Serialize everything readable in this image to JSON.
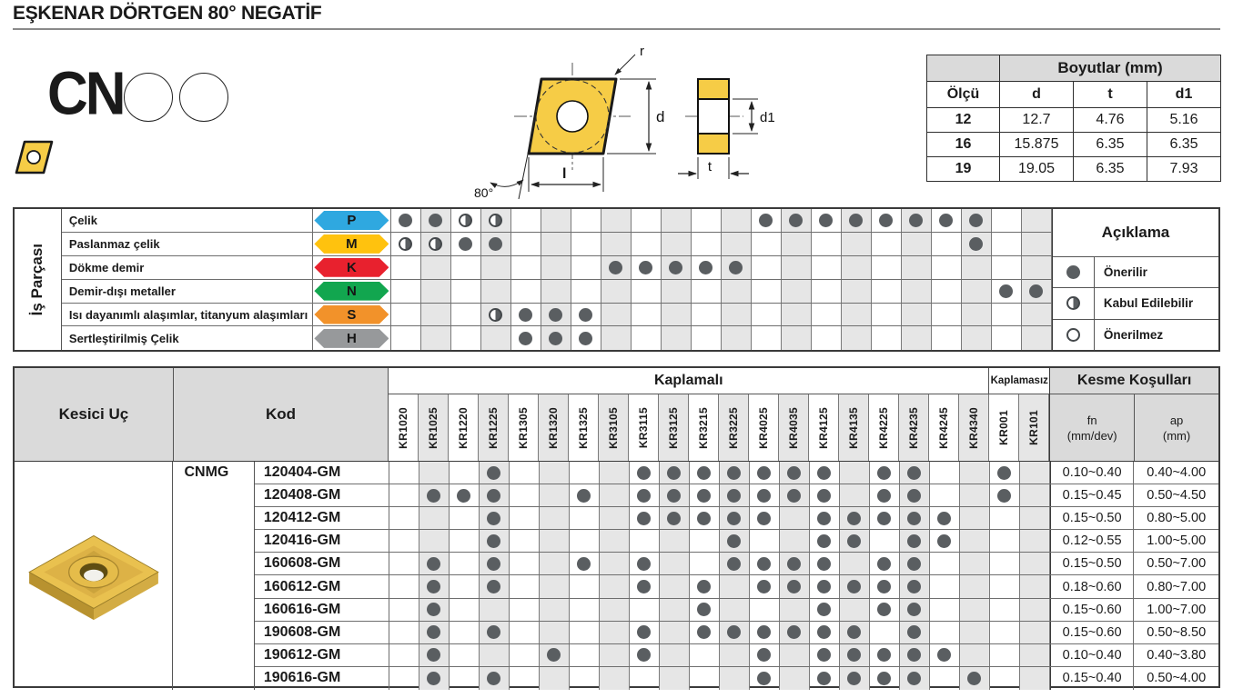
{
  "page": {
    "title": "EŞKENAR DÖRTGEN 80° NEGATİF"
  },
  "header": {
    "designation": "CN",
    "diagram_labels": {
      "r": "r",
      "d": "d",
      "l": "l",
      "angle": "80°",
      "d1": "d1",
      "t": "t"
    },
    "dimensions_table": {
      "title": "Boyutlar (mm)",
      "col_headers": [
        "Ölçü",
        "d",
        "t",
        "d1"
      ],
      "rows": [
        [
          "12",
          "12.7",
          "4.76",
          "5.16"
        ],
        [
          "16",
          "15.875",
          "6.35",
          "6.35"
        ],
        [
          "19",
          "19.05",
          "6.35",
          "7.93"
        ]
      ]
    }
  },
  "materials_table": {
    "sidebar": "İş Parçası",
    "legend": {
      "title": "Açıklama",
      "items": [
        {
          "symbol": "full",
          "label": "Önerilir"
        },
        {
          "symbol": "half",
          "label": "Kabul Edilebilir"
        },
        {
          "symbol": "empty",
          "label": "Önerilmez"
        }
      ]
    },
    "rows": [
      {
        "material": "Çelik",
        "letter": "P",
        "color": "#2FA8E0",
        "dots": [
          1,
          1,
          2,
          2,
          0,
          0,
          0,
          0,
          0,
          0,
          0,
          0,
          1,
          1,
          1,
          1,
          1,
          1,
          1,
          1,
          0,
          0
        ]
      },
      {
        "material": "Paslanmaz çelik",
        "letter": "M",
        "color": "#FFC20E",
        "dots": [
          2,
          2,
          1,
          1,
          0,
          0,
          0,
          0,
          0,
          0,
          0,
          0,
          0,
          0,
          0,
          0,
          0,
          0,
          0,
          1,
          0,
          0
        ]
      },
      {
        "material": "Dökme demir",
        "letter": "K",
        "color": "#E8212E",
        "dots": [
          0,
          0,
          0,
          0,
          0,
          0,
          0,
          1,
          1,
          1,
          1,
          1,
          0,
          0,
          0,
          0,
          0,
          0,
          0,
          0,
          0,
          0
        ]
      },
      {
        "material": "Demir-dışı metaller",
        "letter": "N",
        "color": "#12A64F",
        "dots": [
          0,
          0,
          0,
          0,
          0,
          0,
          0,
          0,
          0,
          0,
          0,
          0,
          0,
          0,
          0,
          0,
          0,
          0,
          0,
          0,
          1,
          1
        ]
      },
      {
        "material": "Isı dayanımlı alaşımlar, titanyum alaşımları",
        "letter": "S",
        "color": "#F2922A",
        "dots": [
          0,
          0,
          0,
          2,
          1,
          1,
          1,
          0,
          0,
          0,
          0,
          0,
          0,
          0,
          0,
          0,
          0,
          0,
          0,
          0,
          0,
          0
        ]
      },
      {
        "material": "Sertleştirilmiş Çelik",
        "letter": "H",
        "color": "#97999B",
        "dots": [
          0,
          0,
          0,
          0,
          1,
          1,
          1,
          0,
          0,
          0,
          0,
          0,
          0,
          0,
          0,
          0,
          0,
          0,
          0,
          0,
          0,
          0
        ]
      }
    ]
  },
  "products_table": {
    "insert_header": "Kesici Uç",
    "code_header": "Kod",
    "coated_header": "Kaplamalı",
    "uncoated_header": "Kaplamasız",
    "cutting_header": "Kesme Koşulları",
    "fn_label": "fn",
    "fn_unit": "(mm/dev)",
    "ap_label": "ap",
    "ap_unit": "(mm)",
    "series": "CNMG",
    "grades": [
      "KR1020",
      "KR1025",
      "KR1220",
      "KR1225",
      "KR1305",
      "KR1320",
      "KR1325",
      "KR3105",
      "KR3115",
      "KR3125",
      "KR3215",
      "KR3225",
      "KR4025",
      "KR4035",
      "KR4125",
      "KR4135",
      "KR4225",
      "KR4235",
      "KR4245",
      "KR4340",
      "KR001",
      "KR101"
    ],
    "rows": [
      {
        "code": "120404-GM",
        "fn": "0.10~0.40",
        "ap": "0.40~4.00",
        "dots": [
          0,
          0,
          0,
          1,
          0,
          0,
          0,
          0,
          1,
          1,
          1,
          1,
          1,
          1,
          1,
          0,
          1,
          1,
          0,
          0,
          1,
          0
        ]
      },
      {
        "code": "120408-GM",
        "fn": "0.15~0.45",
        "ap": "0.50~4.50",
        "dots": [
          0,
          1,
          1,
          1,
          0,
          0,
          1,
          0,
          1,
          1,
          1,
          1,
          1,
          1,
          1,
          0,
          1,
          1,
          0,
          0,
          1,
          0
        ]
      },
      {
        "code": "120412-GM",
        "fn": "0.15~0.50",
        "ap": "0.80~5.00",
        "dots": [
          0,
          0,
          0,
          1,
          0,
          0,
          0,
          0,
          1,
          1,
          1,
          1,
          1,
          0,
          1,
          1,
          1,
          1,
          1,
          0,
          0,
          0
        ]
      },
      {
        "code": "120416-GM",
        "fn": "0.12~0.55",
        "ap": "1.00~5.00",
        "dots": [
          0,
          0,
          0,
          1,
          0,
          0,
          0,
          0,
          0,
          0,
          0,
          1,
          0,
          0,
          1,
          1,
          0,
          1,
          1,
          0,
          0,
          0
        ]
      },
      {
        "code": "160608-GM",
        "fn": "0.15~0.50",
        "ap": "0.50~7.00",
        "dots": [
          0,
          1,
          0,
          1,
          0,
          0,
          1,
          0,
          1,
          0,
          0,
          1,
          1,
          1,
          1,
          0,
          1,
          1,
          0,
          0,
          0,
          0
        ]
      },
      {
        "code": "160612-GM",
        "fn": "0.18~0.60",
        "ap": "0.80~7.00",
        "dots": [
          0,
          1,
          0,
          1,
          0,
          0,
          0,
          0,
          1,
          0,
          1,
          0,
          1,
          1,
          1,
          1,
          1,
          1,
          0,
          0,
          0,
          0
        ]
      },
      {
        "code": "160616-GM",
        "fn": "0.15~0.60",
        "ap": "1.00~7.00",
        "dots": [
          0,
          1,
          0,
          0,
          0,
          0,
          0,
          0,
          0,
          0,
          1,
          0,
          0,
          0,
          1,
          0,
          1,
          1,
          0,
          0,
          0,
          0
        ]
      },
      {
        "code": "190608-GM",
        "fn": "0.15~0.60",
        "ap": "0.50~8.50",
        "dots": [
          0,
          1,
          0,
          1,
          0,
          0,
          0,
          0,
          1,
          0,
          1,
          1,
          1,
          1,
          1,
          1,
          0,
          1,
          0,
          0,
          0,
          0
        ]
      },
      {
        "code": "190612-GM",
        "fn": "0.10~0.40",
        "ap": "0.40~3.80",
        "dots": [
          0,
          1,
          0,
          0,
          0,
          1,
          0,
          0,
          1,
          0,
          0,
          0,
          1,
          0,
          1,
          1,
          1,
          1,
          1,
          0,
          0,
          0
        ]
      },
      {
        "code": "190616-GM",
        "fn": "0.15~0.40",
        "ap": "0.50~4.00",
        "dots": [
          0,
          1,
          0,
          1,
          0,
          0,
          0,
          0,
          0,
          0,
          0,
          0,
          1,
          0,
          1,
          1,
          1,
          1,
          0,
          1,
          0,
          0
        ]
      }
    ]
  }
}
